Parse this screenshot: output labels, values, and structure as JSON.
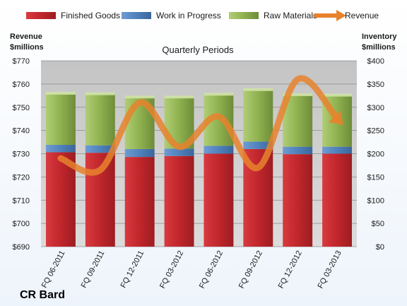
{
  "chart_data": {
    "type": "bar",
    "title": "Quarterly Periods",
    "company": "CR Bard",
    "left_axis": {
      "label_line1": "Revenue",
      "label_line2": "$millions",
      "range": [
        690,
        770
      ],
      "ticks": [
        "$770",
        "$760",
        "$750",
        "$740",
        "$730",
        "$720",
        "$710",
        "$700",
        "$690"
      ]
    },
    "right_axis": {
      "label_line1": "Inventory",
      "label_line2": "$millions",
      "range": [
        0,
        400
      ],
      "ticks": [
        "$400",
        "$350",
        "$300",
        "$250",
        "$200",
        "$150",
        "$100",
        "$50",
        "$0"
      ]
    },
    "categories": [
      "FQ 06-2011",
      "FQ 09-2011",
      "FQ 12-2011",
      "FQ 03-2012",
      "FQ 06-2012",
      "FQ 09-2012",
      "FQ 12-2012",
      "FQ 03-2013"
    ],
    "series": [
      {
        "name": "Finished Goods",
        "axis": "right",
        "color": "#c0262c",
        "values": [
          203,
          202,
          193,
          195,
          200,
          210,
          199,
          200
        ]
      },
      {
        "name": "Work in Progress",
        "axis": "right",
        "color": "#4f81bd",
        "values": [
          16,
          16,
          17,
          16,
          17,
          16,
          16,
          15
        ]
      },
      {
        "name": "Raw Materials",
        "axis": "right",
        "color": "#9bbb59",
        "values": [
          111,
          111,
          112,
          111,
          111,
          112,
          112,
          111
        ]
      },
      {
        "name": "Revenue",
        "axis": "left",
        "type": "line",
        "color": "#e8822d",
        "values": [
          728,
          723,
          752,
          733,
          746,
          724,
          762,
          745
        ]
      }
    ],
    "grid": true,
    "legend": "top"
  }
}
